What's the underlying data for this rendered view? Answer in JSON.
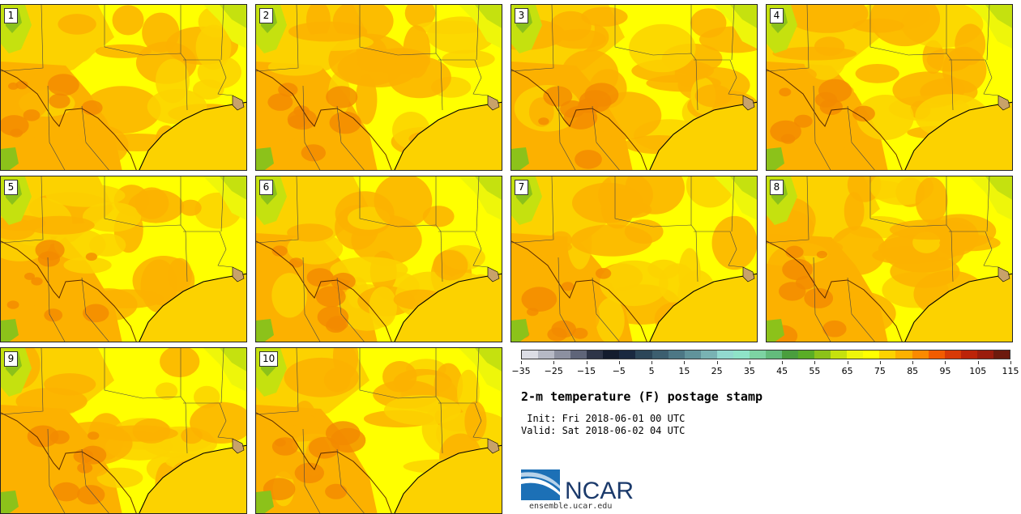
{
  "members": [
    "1",
    "2",
    "3",
    "4",
    "5",
    "6",
    "7",
    "8",
    "9",
    "10"
  ],
  "colorbar": {
    "colors": [
      "#dcdde5",
      "#b6b9c5",
      "#8c90a0",
      "#5f6579",
      "#2e3548",
      "#141c2e",
      "#1a2940",
      "#2c4659",
      "#3c5e6f",
      "#4d7785",
      "#61939b",
      "#79b2b3",
      "#92d9cf",
      "#8fe3c8",
      "#7dd3a3",
      "#63bb7c",
      "#4a9e3e",
      "#5aad26",
      "#8cc21a",
      "#c5e10f",
      "#eef60a",
      "#ffff00",
      "#fcd200",
      "#fcb100",
      "#fb8a00",
      "#f25c00",
      "#d83a07",
      "#bc2409",
      "#9b1c0d",
      "#6d1a0d"
    ],
    "tick_labels": [
      "−35",
      "−25",
      "−15",
      "−5",
      "5",
      "15",
      "25",
      "35",
      "45",
      "55",
      "65",
      "75",
      "85",
      "95",
      "105",
      "115"
    ]
  },
  "title": "2-m temperature (F) postage stamp",
  "init_line": " Init: Fri 2018-06-01 00 UTC",
  "valid_line": "Valid: Sat 2018-06-02 04 UTC",
  "logo_text": "NCAR",
  "website": "ensemble.ucar.edu"
}
